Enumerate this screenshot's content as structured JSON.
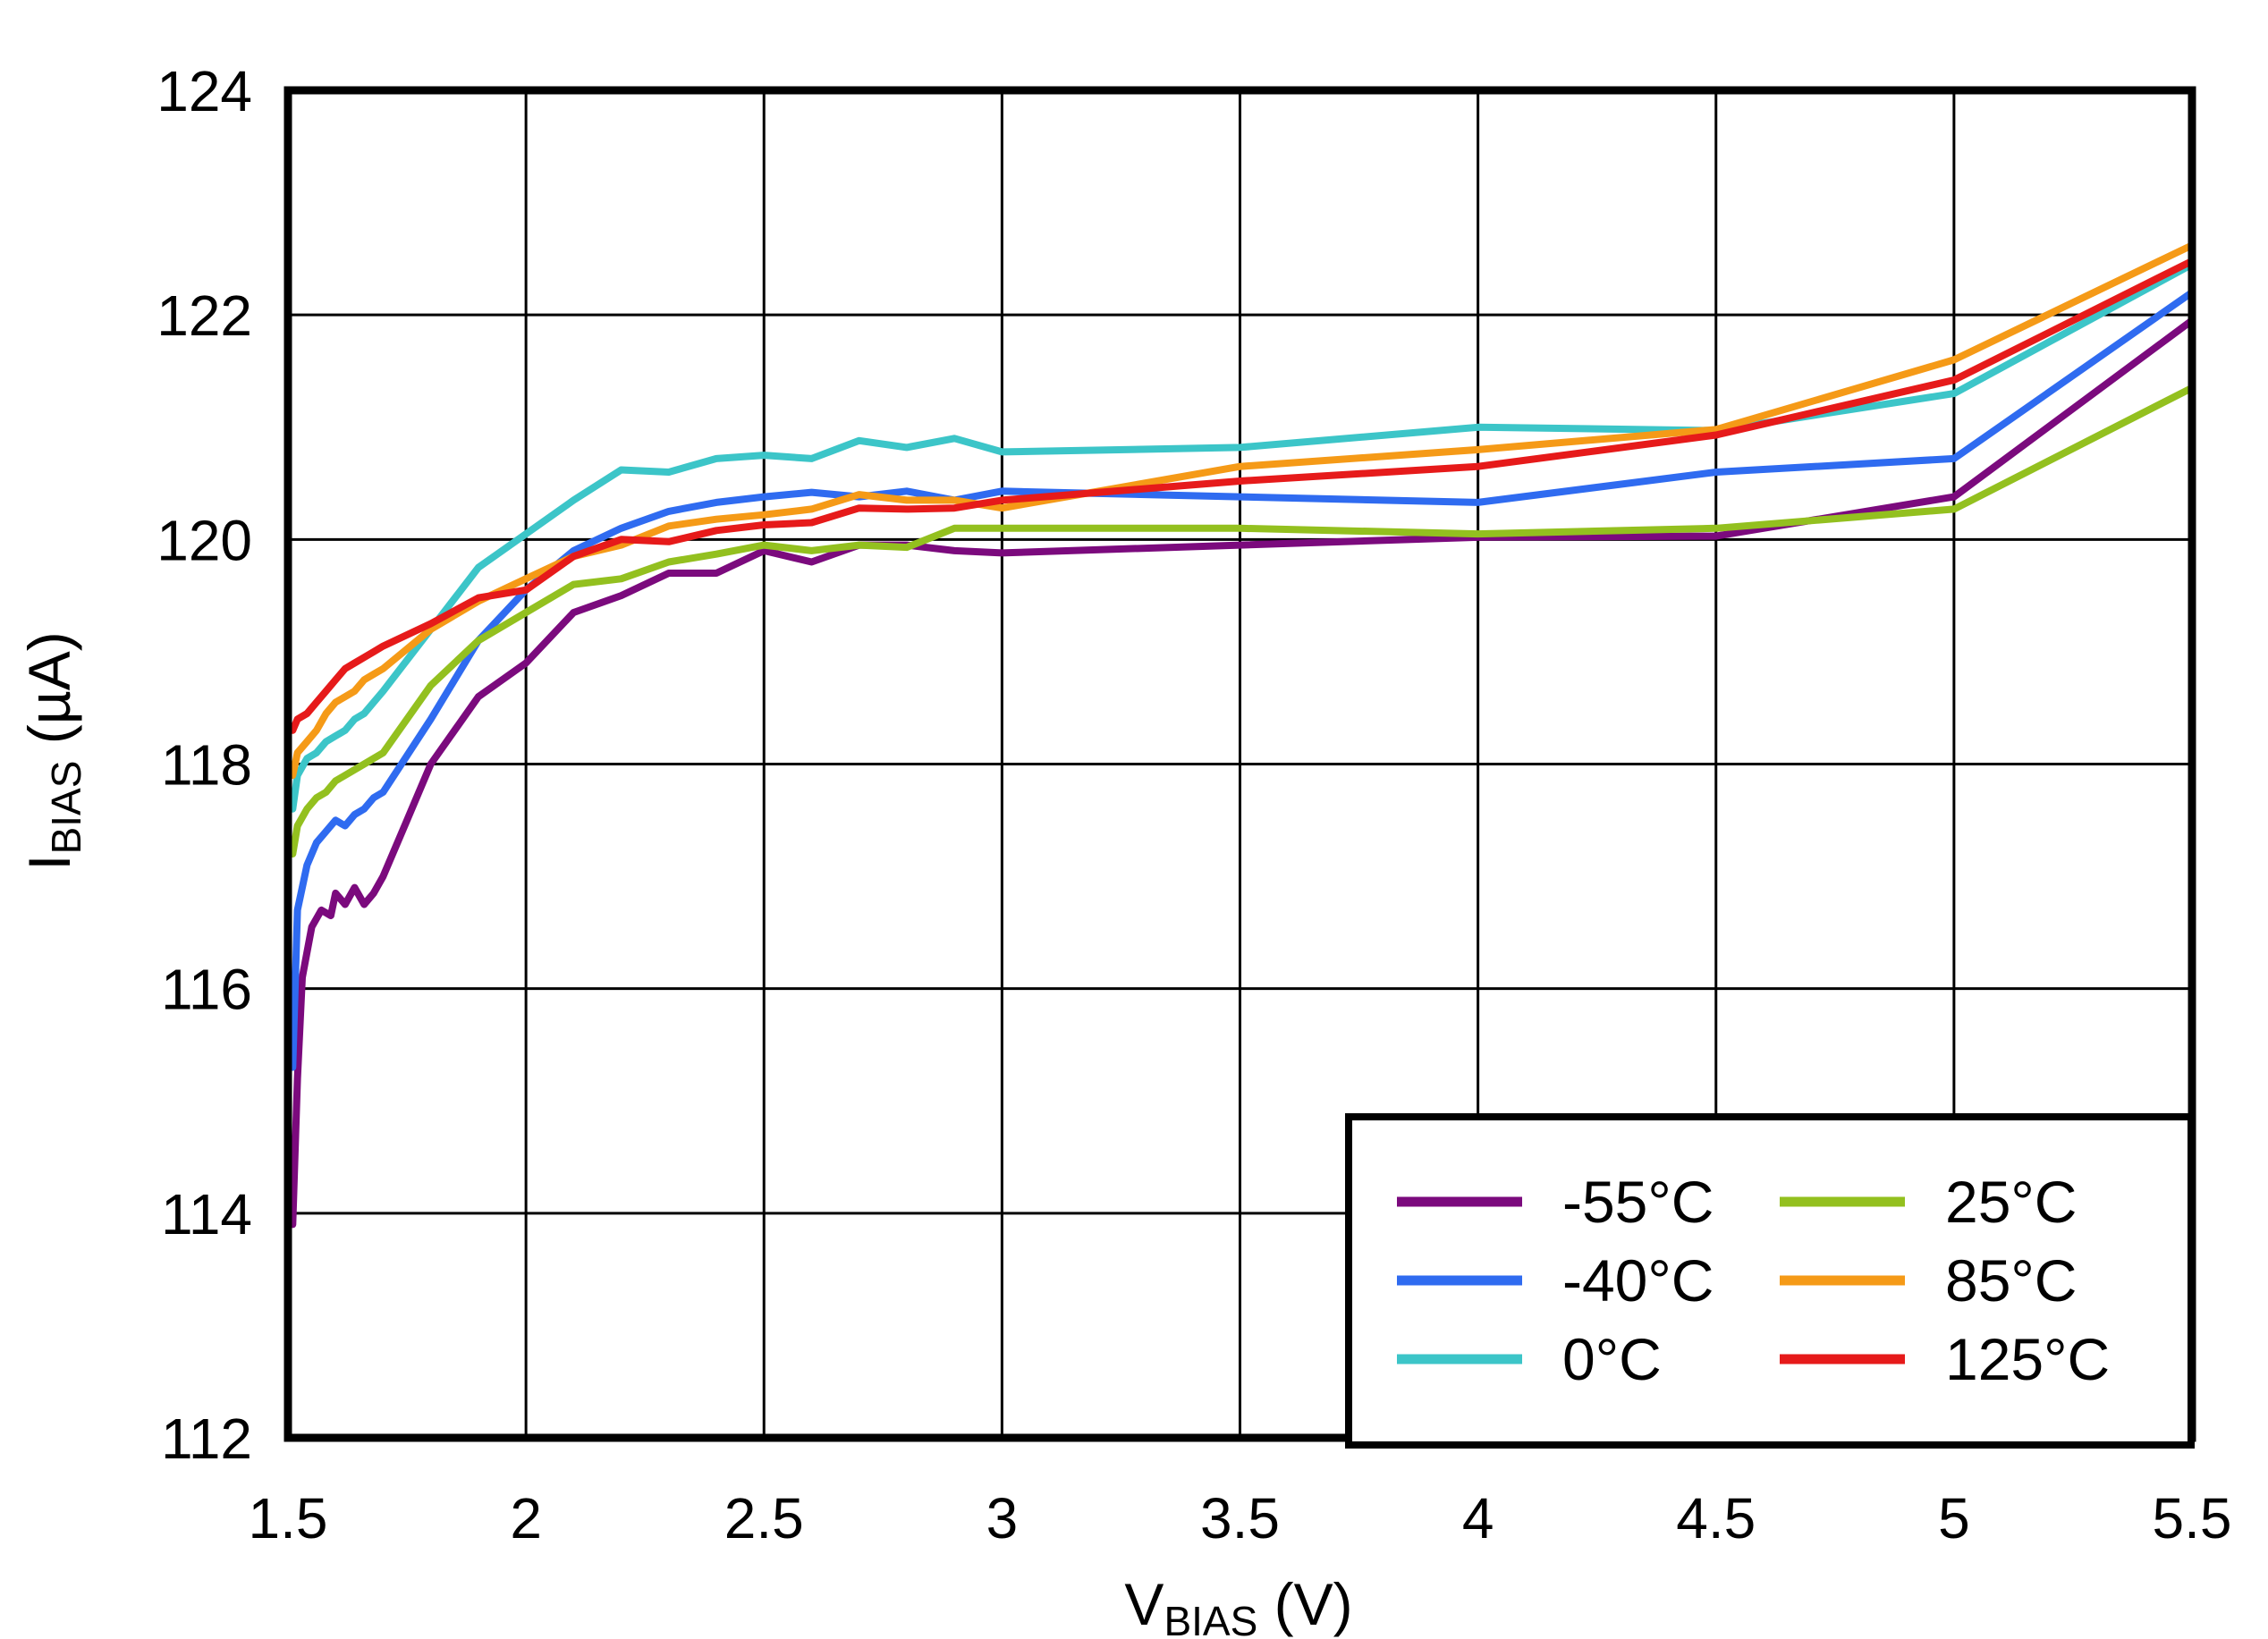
{
  "chart_data": {
    "type": "line",
    "title": "",
    "xlabel": {
      "main": "V",
      "sub": "BIAS",
      "unit": " (V)"
    },
    "ylabel": {
      "main": "I",
      "sub": "BIAS",
      "unit": " (µA)"
    },
    "xlim": [
      1.5,
      5.5
    ],
    "ylim": [
      112,
      124
    ],
    "xticks": [
      1.5,
      2,
      2.5,
      3,
      3.5,
      4,
      4.5,
      5,
      5.5
    ],
    "xtick_labels": [
      "1.5",
      "2",
      "2.5",
      "3",
      "3.5",
      "4",
      "4.5",
      "5",
      "5.5"
    ],
    "yticks": [
      112,
      114,
      116,
      118,
      120,
      122,
      124
    ],
    "ytick_labels": [
      "112",
      "114",
      "116",
      "118",
      "120",
      "122",
      "124"
    ],
    "grid": true,
    "legend_position": "bottom-right",
    "series": [
      {
        "name": "-55°C",
        "color": "#7B0A7D",
        "points": [
          [
            1.51,
            113.9
          ],
          [
            1.52,
            115.2
          ],
          [
            1.53,
            116.1
          ],
          [
            1.55,
            116.55
          ],
          [
            1.57,
            116.7
          ],
          [
            1.59,
            116.65
          ],
          [
            1.6,
            116.85
          ],
          [
            1.62,
            116.75
          ],
          [
            1.64,
            116.9
          ],
          [
            1.66,
            116.75
          ],
          [
            1.68,
            116.85
          ],
          [
            1.7,
            117.0
          ],
          [
            1.75,
            117.5
          ],
          [
            1.8,
            118.0
          ],
          [
            1.9,
            118.6
          ],
          [
            2.0,
            118.9
          ],
          [
            2.1,
            119.35
          ],
          [
            2.2,
            119.5
          ],
          [
            2.3,
            119.7
          ],
          [
            2.4,
            119.7
          ],
          [
            2.5,
            119.9
          ],
          [
            2.6,
            119.8
          ],
          [
            2.7,
            119.95
          ],
          [
            2.8,
            119.95
          ],
          [
            2.9,
            119.9
          ],
          [
            3.0,
            119.88
          ],
          [
            3.5,
            119.95
          ],
          [
            4.0,
            120.02
          ],
          [
            4.5,
            120.03
          ],
          [
            5.0,
            120.38
          ],
          [
            5.5,
            121.95
          ]
        ]
      },
      {
        "name": "-40°C",
        "color": "#2F6BF0",
        "points": [
          [
            1.51,
            115.3
          ],
          [
            1.52,
            116.7
          ],
          [
            1.54,
            117.1
          ],
          [
            1.56,
            117.3
          ],
          [
            1.58,
            117.4
          ],
          [
            1.6,
            117.5
          ],
          [
            1.62,
            117.45
          ],
          [
            1.64,
            117.55
          ],
          [
            1.66,
            117.6
          ],
          [
            1.68,
            117.7
          ],
          [
            1.7,
            117.75
          ],
          [
            1.8,
            118.4
          ],
          [
            1.9,
            119.1
          ],
          [
            2.0,
            119.55
          ],
          [
            2.1,
            119.9
          ],
          [
            2.2,
            120.1
          ],
          [
            2.3,
            120.25
          ],
          [
            2.4,
            120.33
          ],
          [
            2.5,
            120.38
          ],
          [
            2.6,
            120.42
          ],
          [
            2.7,
            120.38
          ],
          [
            2.8,
            120.43
          ],
          [
            2.9,
            120.35
          ],
          [
            3.0,
            120.43
          ],
          [
            3.5,
            120.38
          ],
          [
            4.0,
            120.33
          ],
          [
            4.5,
            120.6
          ],
          [
            5.0,
            120.72
          ],
          [
            5.5,
            122.2
          ]
        ]
      },
      {
        "name": "0°C",
        "color": "#3CC5C8",
        "points": [
          [
            1.51,
            117.6
          ],
          [
            1.52,
            117.9
          ],
          [
            1.54,
            118.05
          ],
          [
            1.56,
            118.1
          ],
          [
            1.58,
            118.2
          ],
          [
            1.6,
            118.25
          ],
          [
            1.62,
            118.3
          ],
          [
            1.64,
            118.4
          ],
          [
            1.66,
            118.45
          ],
          [
            1.68,
            118.55
          ],
          [
            1.7,
            118.65
          ],
          [
            1.8,
            119.2
          ],
          [
            1.9,
            119.75
          ],
          [
            2.0,
            120.05
          ],
          [
            2.1,
            120.35
          ],
          [
            2.2,
            120.62
          ],
          [
            2.3,
            120.6
          ],
          [
            2.4,
            120.72
          ],
          [
            2.5,
            120.75
          ],
          [
            2.6,
            120.72
          ],
          [
            2.7,
            120.88
          ],
          [
            2.8,
            120.82
          ],
          [
            2.9,
            120.9
          ],
          [
            3.0,
            120.78
          ],
          [
            3.5,
            120.82
          ],
          [
            4.0,
            121.0
          ],
          [
            4.5,
            120.97
          ],
          [
            5.0,
            121.3
          ],
          [
            5.5,
            122.45
          ]
        ]
      },
      {
        "name": "25°C",
        "color": "#93C01F",
        "points": [
          [
            1.51,
            117.2
          ],
          [
            1.52,
            117.45
          ],
          [
            1.54,
            117.6
          ],
          [
            1.56,
            117.7
          ],
          [
            1.58,
            117.75
          ],
          [
            1.6,
            117.85
          ],
          [
            1.62,
            117.9
          ],
          [
            1.64,
            117.95
          ],
          [
            1.66,
            118.0
          ],
          [
            1.68,
            118.05
          ],
          [
            1.7,
            118.1
          ],
          [
            1.8,
            118.7
          ],
          [
            1.9,
            119.1
          ],
          [
            2.0,
            119.35
          ],
          [
            2.1,
            119.6
          ],
          [
            2.2,
            119.65
          ],
          [
            2.3,
            119.8
          ],
          [
            2.4,
            119.87
          ],
          [
            2.5,
            119.95
          ],
          [
            2.6,
            119.9
          ],
          [
            2.7,
            119.95
          ],
          [
            2.8,
            119.93
          ],
          [
            2.9,
            120.1
          ],
          [
            3.0,
            120.1
          ],
          [
            3.5,
            120.1
          ],
          [
            4.0,
            120.05
          ],
          [
            4.5,
            120.1
          ],
          [
            5.0,
            120.27
          ],
          [
            5.5,
            121.35
          ]
        ]
      },
      {
        "name": "85°C",
        "color": "#F59A17",
        "points": [
          [
            1.51,
            117.9
          ],
          [
            1.52,
            118.1
          ],
          [
            1.54,
            118.2
          ],
          [
            1.56,
            118.3
          ],
          [
            1.58,
            118.45
          ],
          [
            1.6,
            118.55
          ],
          [
            1.62,
            118.6
          ],
          [
            1.64,
            118.65
          ],
          [
            1.66,
            118.75
          ],
          [
            1.68,
            118.8
          ],
          [
            1.7,
            118.85
          ],
          [
            1.8,
            119.2
          ],
          [
            1.9,
            119.45
          ],
          [
            2.0,
            119.65
          ],
          [
            2.1,
            119.85
          ],
          [
            2.2,
            119.95
          ],
          [
            2.3,
            120.12
          ],
          [
            2.4,
            120.18
          ],
          [
            2.5,
            120.22
          ],
          [
            2.6,
            120.27
          ],
          [
            2.7,
            120.4
          ],
          [
            2.8,
            120.35
          ],
          [
            2.9,
            120.35
          ],
          [
            3.0,
            120.28
          ],
          [
            3.5,
            120.65
          ],
          [
            4.0,
            120.8
          ],
          [
            4.5,
            120.98
          ],
          [
            5.0,
            121.6
          ],
          [
            5.5,
            122.62
          ]
        ]
      },
      {
        "name": "125°C",
        "color": "#E61A1A",
        "points": [
          [
            1.51,
            118.3
          ],
          [
            1.52,
            118.4
          ],
          [
            1.54,
            118.45
          ],
          [
            1.56,
            118.55
          ],
          [
            1.58,
            118.65
          ],
          [
            1.6,
            118.75
          ],
          [
            1.62,
            118.85
          ],
          [
            1.64,
            118.9
          ],
          [
            1.66,
            118.95
          ],
          [
            1.68,
            119.0
          ],
          [
            1.7,
            119.05
          ],
          [
            1.8,
            119.25
          ],
          [
            1.9,
            119.48
          ],
          [
            2.0,
            119.55
          ],
          [
            2.1,
            119.85
          ],
          [
            2.2,
            120.0
          ],
          [
            2.3,
            119.98
          ],
          [
            2.4,
            120.08
          ],
          [
            2.5,
            120.13
          ],
          [
            2.6,
            120.15
          ],
          [
            2.7,
            120.28
          ],
          [
            2.8,
            120.27
          ],
          [
            2.9,
            120.28
          ],
          [
            3.0,
            120.35
          ],
          [
            3.5,
            120.52
          ],
          [
            4.0,
            120.65
          ],
          [
            4.5,
            120.93
          ],
          [
            5.0,
            121.42
          ],
          [
            5.5,
            122.48
          ]
        ]
      }
    ]
  }
}
